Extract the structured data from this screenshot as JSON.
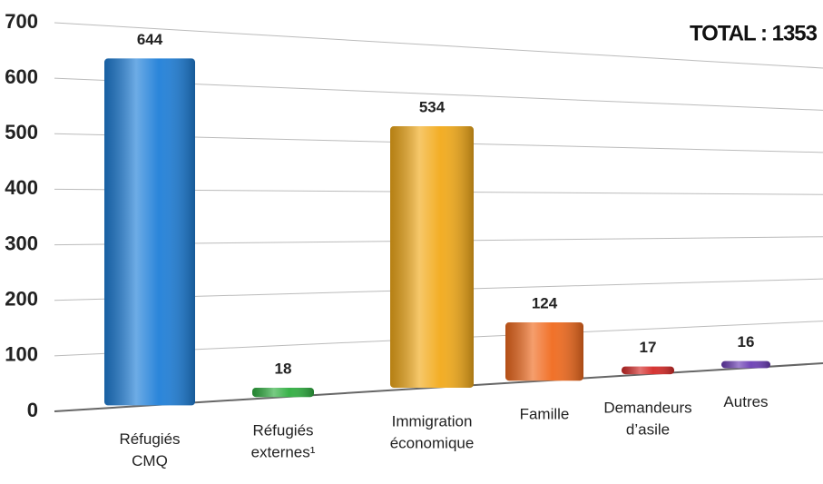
{
  "chart_data": {
    "type": "bar",
    "annotation": "TOTAL : 1353",
    "categories": [
      [
        "Réfugiés",
        "CMQ"
      ],
      [
        "Réfugiés",
        "externes¹"
      ],
      [
        "Immigration",
        "économique"
      ],
      [
        "Famille"
      ],
      [
        "Demandeurs",
        "d’asile"
      ],
      [
        "Autres"
      ]
    ],
    "values": [
      644,
      18,
      534,
      124,
      17,
      16
    ],
    "colors": [
      "#1f7fd8",
      "#2fae40",
      "#f2aa1a",
      "#f06a1e",
      "#d42a28",
      "#6a3cb4"
    ],
    "ylim": [
      0,
      700
    ],
    "yticks": [
      0,
      100,
      200,
      300,
      400,
      500,
      600,
      700
    ],
    "grid": true
  }
}
